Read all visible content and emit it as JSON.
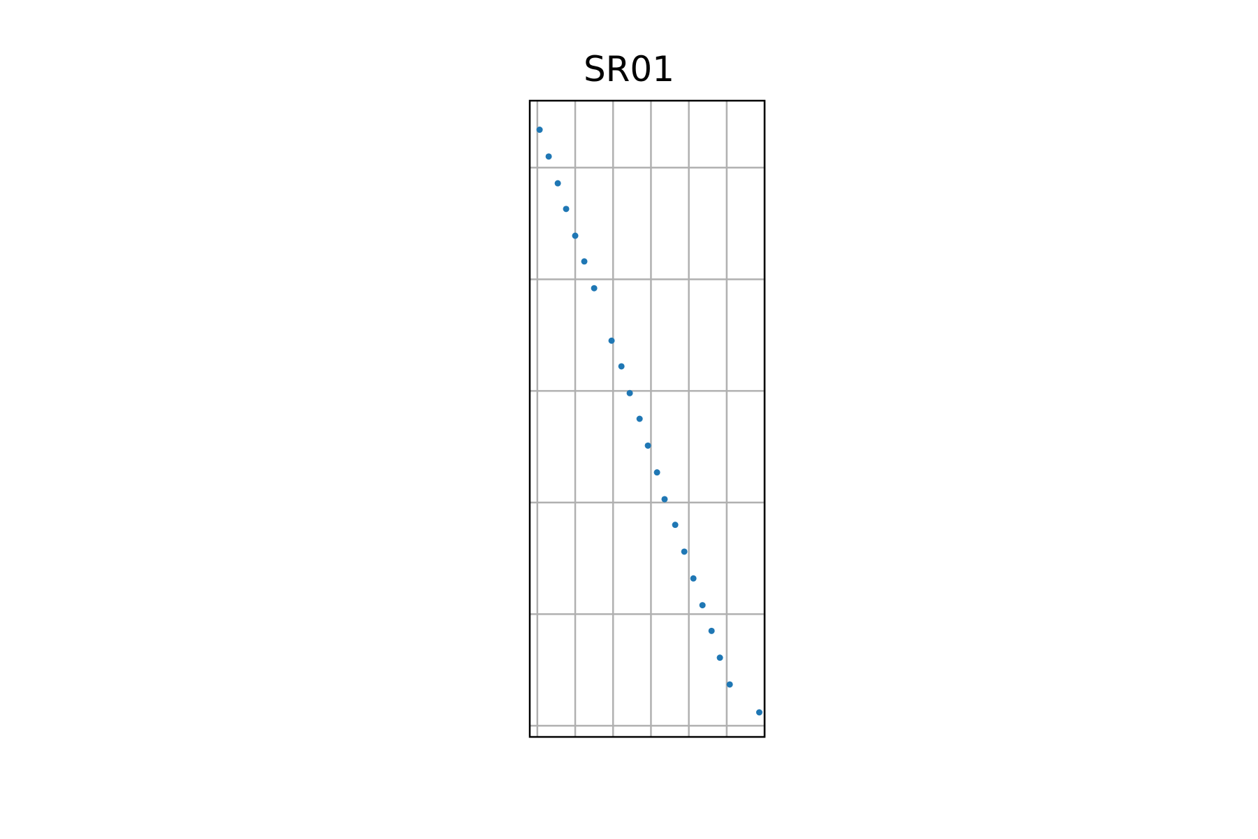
{
  "chart_data": {
    "type": "scatter",
    "title": "SR01",
    "xlabel": "",
    "ylabel": "",
    "xlim": [
      0,
      31
    ],
    "ylim": [
      0,
      57
    ],
    "x_grid": [
      1,
      6,
      11,
      16,
      21,
      26,
      31
    ],
    "y_grid": [
      1,
      11,
      21,
      31,
      41,
      51
    ],
    "grid": true,
    "colors": {
      "points": "#1f77b4",
      "grid": "#b0b0b0",
      "axes": "#000000"
    },
    "series": [
      {
        "x": [
          1.3,
          2.5,
          3.7,
          4.8,
          6.0,
          7.2,
          8.5,
          10.8,
          12.1,
          13.2,
          14.5,
          15.6,
          16.8,
          17.8,
          19.2,
          20.4,
          21.6,
          22.8,
          24.0,
          25.1,
          26.4,
          30.3
        ],
        "y": [
          54.4,
          52.0,
          49.6,
          47.3,
          44.9,
          42.6,
          40.2,
          35.5,
          33.2,
          30.8,
          28.5,
          26.1,
          23.7,
          21.3,
          19.0,
          16.6,
          14.2,
          11.8,
          9.5,
          7.1,
          4.7,
          2.2
        ]
      }
    ]
  }
}
